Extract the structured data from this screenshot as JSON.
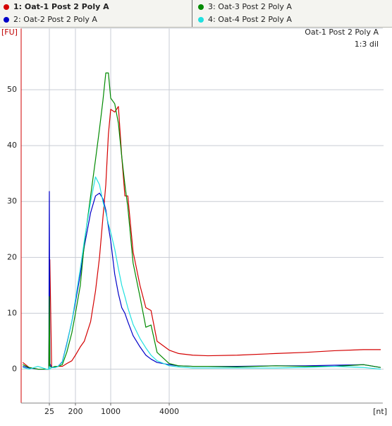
{
  "chart_data": {
    "type": "line",
    "ylabel": "[FU]",
    "xlabel": "[nt]",
    "annotations": [
      "Oat-1 Post 2 Poly A",
      "1:3 dil"
    ],
    "legend": "top",
    "grid": true,
    "xlim": [
      2.6,
      630000
    ],
    "ylim": [
      -6,
      61
    ],
    "xticks": [
      25,
      200,
      1000,
      4000
    ],
    "yticks": [
      0,
      10,
      20,
      30,
      40,
      50
    ],
    "x": [
      3,
      5,
      10,
      20,
      24,
      25,
      26,
      30,
      40,
      50,
      70,
      100,
      150,
      200,
      250,
      300,
      400,
      500,
      600,
      700,
      800,
      900,
      1000,
      1100,
      1200,
      1300,
      1400,
      1500,
      1700,
      2000,
      2300,
      2600,
      3000,
      4000,
      5000,
      7000,
      10000,
      20000,
      50000,
      100000,
      200000,
      400000,
      600000
    ],
    "series": [
      {
        "name": "1: Oat-1 Post 2 Poly A",
        "color": "#d40000",
        "values": [
          1.2,
          0.3,
          0,
          0,
          0,
          13,
          19.6,
          0.3,
          0.5,
          0.5,
          0.5,
          1,
          1.5,
          2.5,
          4,
          5,
          8.5,
          14,
          20,
          27,
          33,
          42,
          46.5,
          46,
          47,
          38,
          31,
          31,
          21,
          15,
          11,
          10.5,
          5,
          3.4,
          2.8,
          2.5,
          2.4,
          2.5,
          2.8,
          3.0,
          3.3,
          3.5,
          3.5
        ]
      },
      {
        "name": "2: Oat-2 Post 2 Poly A",
        "color": "#0000c8",
        "values": [
          0.5,
          0.2,
          0,
          0,
          0,
          31.8,
          1,
          0.3,
          0.3,
          0.5,
          1.3,
          4.5,
          8.5,
          12,
          17,
          22,
          28,
          31,
          31.5,
          30.5,
          28.5,
          25.5,
          23,
          17,
          13.5,
          11,
          10,
          8.5,
          6,
          4,
          2.5,
          1.8,
          1.2,
          0.8,
          0.6,
          0.5,
          0.5,
          0.5,
          0.6,
          0.6,
          0.7,
          0.8,
          0.3
        ]
      },
      {
        "name": "3: Oat-3 Post 2 Poly A",
        "color": "#008a00",
        "values": [
          0.8,
          0.3,
          0,
          0,
          0,
          13,
          0.5,
          0.3,
          0.5,
          0.5,
          0.8,
          3,
          6.5,
          10,
          15,
          22.5,
          31,
          37.5,
          43,
          48,
          53,
          53,
          48.5,
          47.5,
          44,
          38,
          33,
          29,
          19,
          13,
          7.5,
          7.9,
          3,
          1,
          0.6,
          0.5,
          0.5,
          0.4,
          0.6,
          0.5,
          0.5,
          0.8,
          0.3
        ]
      },
      {
        "name": "4: Oat-4 Post 2 Poly A",
        "color": "#20e0e0",
        "values": [
          0.3,
          0,
          0.5,
          0,
          0,
          0.5,
          0,
          0.3,
          0.3,
          0.5,
          1.2,
          4.3,
          8.5,
          12.5,
          18,
          23,
          30,
          34.4,
          33,
          30,
          28,
          26,
          24.5,
          21.5,
          18,
          15,
          13,
          11,
          8,
          5.5,
          3.8,
          2.5,
          1.5,
          0.6,
          0.4,
          0.2,
          0.2,
          0.2,
          0.2,
          0.3,
          0.5,
          0.3,
          0
        ]
      }
    ]
  }
}
